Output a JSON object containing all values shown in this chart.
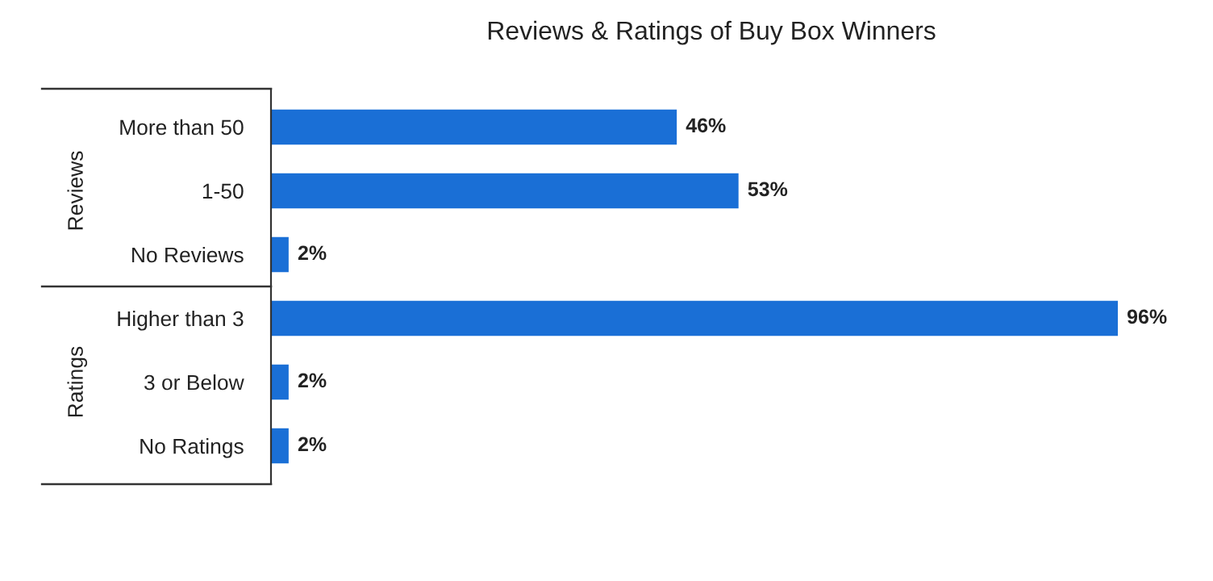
{
  "chart_data": {
    "type": "bar",
    "orientation": "horizontal",
    "title": "Reviews & Ratings of Buy Box Winners",
    "categories": [
      "More than 50",
      "1-50",
      "No Reviews",
      "Higher than 3",
      "3 or Below",
      "No Ratings"
    ],
    "values": [
      46,
      53,
      2,
      96,
      2,
      2
    ],
    "color": "#1a6fd6",
    "value_labels": [
      "46%",
      "53%",
      "2%",
      "96%",
      "2%",
      "2%"
    ],
    "tick_labels": "y",
    "grid": false,
    "legend": false,
    "annotations": [
      "Reviews",
      "Ratings"
    ]
  }
}
